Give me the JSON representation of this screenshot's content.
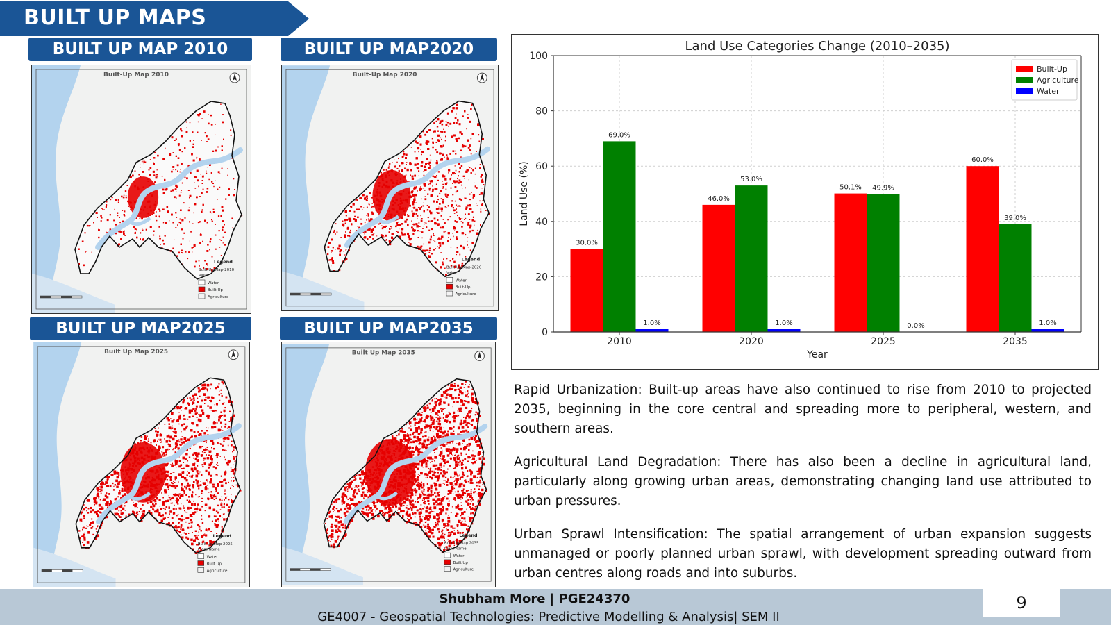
{
  "header": {
    "title": "BUILT UP MAPS"
  },
  "maps": [
    {
      "label": "BUILT UP MAP 2010",
      "inner_title": "Built-Up Map 2010",
      "legend_title": "Legend",
      "legend_sub": "Built Up Map-2010",
      "legend_key": "Value",
      "legend_items": [
        "Water",
        "Built-Up",
        "Agriculture"
      ],
      "density": 0.18
    },
    {
      "label": "BUILT UP MAP2020",
      "inner_title": "Built-Up Map 2020",
      "legend_title": "Legend",
      "legend_sub": "Built Up Map-2020",
      "legend_key": "Value",
      "legend_items": [
        "Water",
        "Built-Up",
        "Agriculture"
      ],
      "density": 0.35
    },
    {
      "label": "BUILT UP MAP2025",
      "inner_title": "Built Up Map 2025",
      "legend_title": "Legend",
      "legend_sub": "Built Up Map 2025",
      "legend_key": "Class Name",
      "legend_items": [
        "Water",
        "Built Up",
        "Agriculture"
      ],
      "density": 0.5
    },
    {
      "label": "BUILT UP MAP2035",
      "inner_title": "Built Up Map 2035",
      "legend_title": "Legend",
      "legend_sub": "Built Up Map 2035",
      "legend_key": "Class Name",
      "legend_items": [
        "Water",
        "Built Up",
        "Agriculture"
      ],
      "density": 0.62
    }
  ],
  "chart_data": {
    "type": "bar",
    "title": "Land Use Categories Change (2010–2035)",
    "xlabel": "Year",
    "ylabel": "Land Use (%)",
    "ylim": [
      0,
      100
    ],
    "yticks": [
      0,
      20,
      40,
      60,
      80,
      100
    ],
    "grid": true,
    "legend_position": "top-right",
    "categories": [
      "2010",
      "2020",
      "2025",
      "2035"
    ],
    "series": [
      {
        "name": "Built-Up",
        "color": "#ff0000",
        "values": [
          30.0,
          46.0,
          50.1,
          60.0
        ],
        "labels": [
          "30.0%",
          "46.0%",
          "50.1%",
          "60.0%"
        ]
      },
      {
        "name": "Agriculture",
        "color": "#008000",
        "values": [
          69.0,
          53.0,
          49.9,
          39.0
        ],
        "labels": [
          "69.0%",
          "53.0%",
          "49.9%",
          "39.0%"
        ]
      },
      {
        "name": "Water",
        "color": "#0000ff",
        "values": [
          1.0,
          1.0,
          0.0,
          1.0
        ],
        "labels": [
          "1.0%",
          "1.0%",
          "0.0%",
          "1.0%"
        ]
      }
    ]
  },
  "paragraphs": [
    "Rapid Urbanization: Built-up areas have also continued to rise from 2010 to projected 2035, beginning in the core central and spreading more to peripheral, western, and southern areas.",
    "Agricultural Land Degradation: There has also been a decline in agricultural land, particularly along growing urban areas, demonstrating changing land use attributed to urban pressures.",
    "Urban Sprawl Intensification: The spatial arrangement of urban expansion suggests unmanaged or poorly planned urban sprawl, with development spreading outward from urban centres along roads and into suburbs."
  ],
  "footer": {
    "author": "Shubham More | PGE24370",
    "course": "GE4007 - Geospatial Technologies: Predictive Modelling & Analysis| SEM II",
    "page_number": "9"
  },
  "colors": {
    "banner": "#1a5596",
    "footer": "#b8c8d6",
    "water": "#b3d3ee",
    "builtup": "#e60000"
  }
}
